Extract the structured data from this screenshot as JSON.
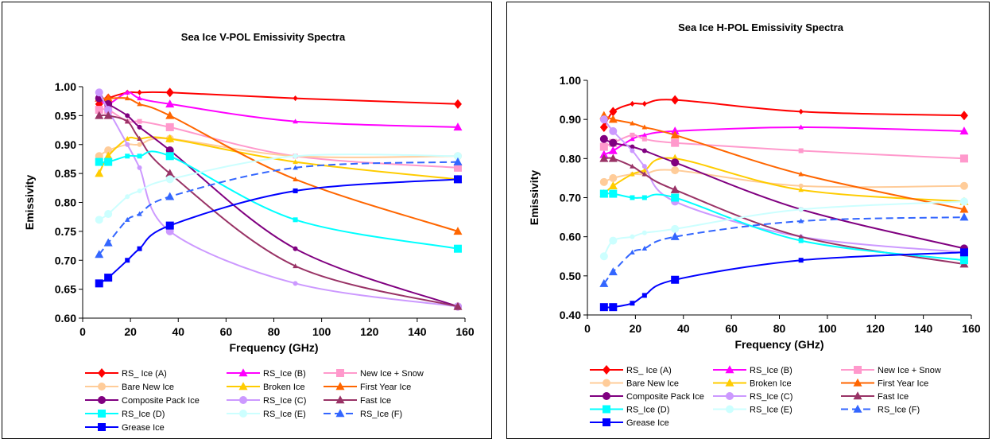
{
  "chart_data": [
    {
      "type": "line",
      "title": "Sea Ice V-POL Emissivity Spectra",
      "xlabel": "Frequency (GHz)",
      "ylabel": "Emissivity",
      "xlim": [
        0,
        160
      ],
      "ylim": [
        0.6,
        1.0
      ],
      "xticks": [
        "0",
        "20",
        "40",
        "60",
        "80",
        "100",
        "120",
        "140",
        "160"
      ],
      "yticks": [
        "0.60",
        "0.65",
        "0.70",
        "0.75",
        "0.80",
        "0.85",
        "0.90",
        "0.95",
        "1.00"
      ],
      "x": [
        6.9,
        10.7,
        18.7,
        23.8,
        36.5,
        89,
        157
      ],
      "grid": false,
      "legend": "bottom",
      "series": [
        {
          "name": "RS_ Ice (A)",
          "color": "#ff0000",
          "marker": "diamond",
          "dash": false,
          "values": [
            0.97,
            0.98,
            0.99,
            0.99,
            0.99,
            0.98,
            0.97
          ]
        },
        {
          "name": "RS_Ice (B)",
          "color": "#ff00ff",
          "marker": "triangle",
          "dash": false,
          "values": [
            0.98,
            0.97,
            0.99,
            0.98,
            0.97,
            0.94,
            0.93
          ]
        },
        {
          "name": "New Ice + Snow",
          "color": "#ff99cc",
          "marker": "square",
          "dash": false,
          "values": [
            0.96,
            0.96,
            0.94,
            0.94,
            0.93,
            0.88,
            0.86
          ]
        },
        {
          "name": "Bare New Ice",
          "color": "#ffcc99",
          "marker": "circle",
          "dash": false,
          "values": [
            0.88,
            0.89,
            0.9,
            0.9,
            0.91,
            0.88,
            0.88
          ]
        },
        {
          "name": "Broken Ice",
          "color": "#ffcc00",
          "marker": "triangle",
          "dash": false,
          "values": [
            0.85,
            0.88,
            0.91,
            0.91,
            0.91,
            0.87,
            0.84
          ]
        },
        {
          "name": "First Year Ice",
          "color": "#ff6600",
          "marker": "triangle",
          "dash": false,
          "values": [
            0.98,
            0.98,
            0.98,
            0.97,
            0.95,
            0.84,
            0.75
          ]
        },
        {
          "name": "Composite Pack Ice",
          "color": "#800080",
          "marker": "circle",
          "dash": false,
          "values": [
            0.98,
            0.97,
            0.95,
            0.93,
            0.89,
            0.72,
            0.62
          ]
        },
        {
          "name": "RS_Ice (C)",
          "color": "#cc99ff",
          "marker": "circle",
          "dash": false,
          "values": [
            0.99,
            0.96,
            0.9,
            0.86,
            0.75,
            0.66,
            0.62
          ]
        },
        {
          "name": "Fast Ice",
          "color": "#993366",
          "marker": "triangle",
          "dash": false,
          "values": [
            0.95,
            0.95,
            0.94,
            0.91,
            0.85,
            0.69,
            0.62
          ]
        },
        {
          "name": "RS_Ice (D)",
          "color": "#00ffff",
          "marker": "square",
          "dash": false,
          "values": [
            0.87,
            0.87,
            0.88,
            0.88,
            0.88,
            0.77,
            0.72
          ]
        },
        {
          "name": "RS_Ice (E)",
          "color": "#ccffff",
          "marker": "circle",
          "dash": false,
          "values": [
            0.77,
            0.78,
            0.81,
            0.82,
            0.84,
            0.88,
            0.88
          ]
        },
        {
          "name": "RS_Ice (F)",
          "color": "#3366ff",
          "marker": "triangle",
          "dash": true,
          "values": [
            0.71,
            0.73,
            0.77,
            0.78,
            0.81,
            0.86,
            0.87
          ]
        },
        {
          "name": "Grease Ice",
          "color": "#0000ff",
          "marker": "square",
          "dash": false,
          "values": [
            0.66,
            0.67,
            0.7,
            0.72,
            0.76,
            0.82,
            0.84
          ]
        }
      ]
    },
    {
      "type": "line",
      "title": "Sea Ice H-POL Emissivity Spectra",
      "xlabel": "Frequency (GHz)",
      "ylabel": "Emissivity",
      "xlim": [
        0,
        160
      ],
      "ylim": [
        0.4,
        1.0
      ],
      "xticks": [
        "0",
        "20",
        "40",
        "60",
        "80",
        "100",
        "120",
        "140",
        "160"
      ],
      "yticks": [
        "0.40",
        "0.50",
        "0.60",
        "0.70",
        "0.80",
        "0.90",
        "1.00"
      ],
      "x": [
        6.9,
        10.7,
        18.7,
        23.8,
        36.5,
        89,
        157
      ],
      "grid": false,
      "legend": "bottom",
      "series": [
        {
          "name": "RS_ Ice (A)",
          "color": "#ff0000",
          "marker": "diamond",
          "dash": false,
          "values": [
            0.88,
            0.92,
            0.94,
            0.94,
            0.95,
            0.92,
            0.91
          ]
        },
        {
          "name": "RS_Ice (B)",
          "color": "#ff00ff",
          "marker": "triangle",
          "dash": false,
          "values": [
            0.81,
            0.82,
            0.85,
            0.86,
            0.87,
            0.88,
            0.87
          ]
        },
        {
          "name": "New Ice + Snow",
          "color": "#ff99cc",
          "marker": "square",
          "dash": false,
          "values": [
            0.83,
            0.84,
            0.86,
            0.85,
            0.84,
            0.82,
            0.8
          ]
        },
        {
          "name": "Bare New Ice",
          "color": "#ffcc99",
          "marker": "circle",
          "dash": false,
          "values": [
            0.74,
            0.75,
            0.76,
            0.76,
            0.77,
            0.73,
            0.73
          ]
        },
        {
          "name": "Broken Ice",
          "color": "#ffcc00",
          "marker": "triangle",
          "dash": false,
          "values": [
            0.71,
            0.73,
            0.76,
            0.77,
            0.8,
            0.72,
            0.69
          ]
        },
        {
          "name": "First Year Ice",
          "color": "#ff6600",
          "marker": "triangle",
          "dash": false,
          "values": [
            0.91,
            0.9,
            0.89,
            0.88,
            0.86,
            0.76,
            0.67
          ]
        },
        {
          "name": "Composite Pack Ice",
          "color": "#800080",
          "marker": "circle",
          "dash": false,
          "values": [
            0.85,
            0.84,
            0.83,
            0.82,
            0.79,
            0.67,
            0.57
          ]
        },
        {
          "name": "RS_Ice (C)",
          "color": "#cc99ff",
          "marker": "circle",
          "dash": false,
          "values": [
            0.9,
            0.87,
            0.82,
            0.78,
            0.69,
            0.6,
            0.56
          ]
        },
        {
          "name": "Fast Ice",
          "color": "#993366",
          "marker": "triangle",
          "dash": false,
          "values": [
            0.8,
            0.8,
            0.78,
            0.76,
            0.72,
            0.6,
            0.53
          ]
        },
        {
          "name": "RS_Ice (D)",
          "color": "#00ffff",
          "marker": "square",
          "dash": false,
          "values": [
            0.71,
            0.71,
            0.7,
            0.7,
            0.7,
            0.59,
            0.54
          ]
        },
        {
          "name": "RS_Ice (E)",
          "color": "#ccffff",
          "marker": "circle",
          "dash": false,
          "values": [
            0.55,
            0.59,
            0.6,
            0.61,
            0.62,
            0.67,
            0.69
          ]
        },
        {
          "name": "RS_Ice (F)",
          "color": "#3366ff",
          "marker": "triangle",
          "dash": true,
          "values": [
            0.48,
            0.51,
            0.56,
            0.57,
            0.6,
            0.64,
            0.65
          ]
        },
        {
          "name": "Grease Ice",
          "color": "#0000ff",
          "marker": "square",
          "dash": false,
          "values": [
            0.42,
            0.42,
            0.43,
            0.45,
            0.49,
            0.54,
            0.56
          ]
        }
      ]
    }
  ]
}
